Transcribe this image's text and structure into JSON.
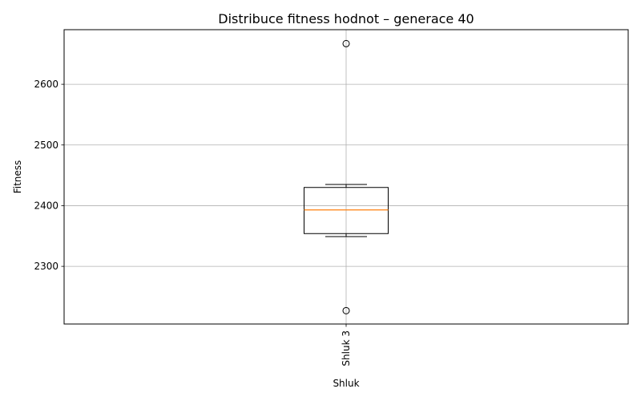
{
  "chart_data": {
    "type": "box",
    "title": "Distribuce fitness hodnot – generace 40",
    "xlabel": "Shluk",
    "ylabel": "Fitness",
    "ylim": [
      2205,
      2690
    ],
    "yticks": [
      2300,
      2400,
      2500,
      2600
    ],
    "grid": true,
    "categories": [
      "Shluk 3"
    ],
    "boxes": [
      {
        "category": "Shluk 3",
        "whisker_low": 2349,
        "q1": 2354,
        "median": 2393,
        "q3": 2430,
        "whisker_high": 2435,
        "outliers": [
          2227,
          2667
        ]
      }
    ],
    "colors": {
      "box": "#000000",
      "median": "#ff7f0e",
      "grid": "#b0b0b0"
    }
  }
}
